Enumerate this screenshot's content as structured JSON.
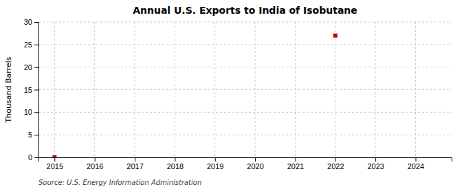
{
  "chart_data": {
    "type": "scatter",
    "title": "Annual U.S. Exports to India of Isobutane",
    "ylabel": "Thousand Barrels",
    "annotations": [
      "Source: U.S. Energy Information Administration"
    ],
    "x": [
      2015,
      2022
    ],
    "values": [
      0,
      27
    ],
    "color": "#cc0000",
    "marker": "square",
    "xlim": [
      2014.6,
      2024.9
    ],
    "ylim": [
      0,
      30
    ],
    "xticks": [
      2015,
      2016,
      2017,
      2018,
      2019,
      2020,
      2021,
      2022,
      2023,
      2024
    ],
    "yticks": [
      0,
      5,
      10,
      15,
      20,
      25,
      30
    ],
    "grid": true
  }
}
